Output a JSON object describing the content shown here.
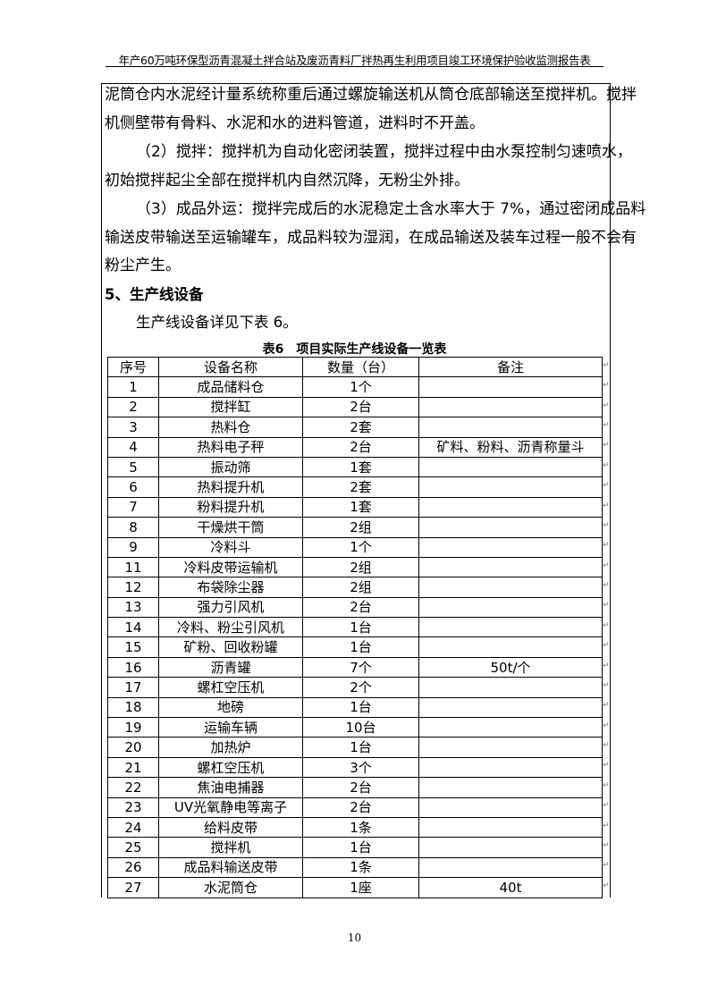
{
  "header": {
    "title": "年产60万吨环保型沥青混凝土拌合站及废沥青料厂拌热再生利用项目竣工环境保护验收监测报告表"
  },
  "paragraphs": [
    {
      "lines": [
        "泥筒仓内水泥经计量系统称重后通过螺旋输送机从筒仓底部输送至搅拌机。搅拌",
        "机侧壁带有骨料、水泥和水的进料管道，进料时不开盖。"
      ]
    },
    {
      "lines": [
        "（2）搅拌：搅拌机为自动化密闭装置，搅拌过程中由水泵控制匀速喷水，",
        "初始搅拌起尘全部在搅拌机内自然沉降，无粉尘外排。"
      ]
    },
    {
      "lines": [
        "（3）成品外运：搅拌完成后的水泥稳定土含水率大于 7%，通过密闭成品料",
        "输送皮带输送至运输罐车，成品料较为湿润，在成品输送及装车过程一般不会有",
        "粉尘产生。"
      ]
    }
  ],
  "section": {
    "heading": "5、生产线设备",
    "intro": "生产线设备详见下表 6。"
  },
  "table": {
    "caption": "表6　项目实际生产线设备一览表",
    "columns": [
      "序号",
      "设备名称",
      "数量（台）",
      "备注"
    ],
    "rows": [
      [
        "1",
        "成品储料仓",
        "1个",
        ""
      ],
      [
        "2",
        "搅拌缸",
        "2台",
        ""
      ],
      [
        "3",
        "热料仓",
        "2套",
        ""
      ],
      [
        "4",
        "热料电子秤",
        "2台",
        "矿料、粉料、沥青称量斗"
      ],
      [
        "5",
        "振动筛",
        "1套",
        ""
      ],
      [
        "6",
        "热料提升机",
        "2套",
        ""
      ],
      [
        "7",
        "粉料提升机",
        "1套",
        ""
      ],
      [
        "8",
        "干燥烘干筒",
        "2组",
        ""
      ],
      [
        "9",
        "冷料斗",
        "1个",
        ""
      ],
      [
        "11",
        "冷料皮带运输机",
        "2组",
        ""
      ],
      [
        "12",
        "布袋除尘器",
        "2组",
        ""
      ],
      [
        "13",
        "强力引风机",
        "2台",
        ""
      ],
      [
        "14",
        "冷料、粉尘引风机",
        "1台",
        ""
      ],
      [
        "15",
        "矿粉、回收粉罐",
        "1台",
        ""
      ],
      [
        "16",
        "沥青罐",
        "7个",
        "50t/个"
      ],
      [
        "17",
        "螺杠空压机",
        "2个",
        ""
      ],
      [
        "18",
        "地磅",
        "1台",
        ""
      ],
      [
        "19",
        "运输车辆",
        "10台",
        ""
      ],
      [
        "20",
        "加热炉",
        "1台",
        ""
      ],
      [
        "21",
        "螺杠空压机",
        "3个",
        ""
      ],
      [
        "22",
        "焦油电捕器",
        "2台",
        ""
      ],
      [
        "23",
        "UV光氧静电等离子",
        "2台",
        ""
      ],
      [
        "24",
        "给料皮带",
        "1条",
        ""
      ],
      [
        "25",
        "搅拌机",
        "1台",
        ""
      ],
      [
        "26",
        "成品料输送皮带",
        "1条",
        ""
      ],
      [
        "27",
        "水泥筒仓",
        "1座",
        "40t"
      ]
    ]
  },
  "footer": {
    "page_number": "10"
  }
}
